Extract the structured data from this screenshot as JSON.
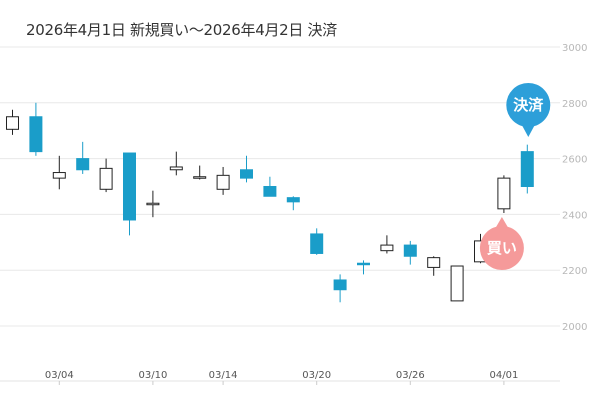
{
  "title": "2026年4月1日 新規買い〜2026年4月2日 決済",
  "colors": {
    "up_fill": "#ffffff",
    "up_stroke": "#222222",
    "down_fill": "#1a9dc9",
    "grid": "#e8e8e8",
    "buy_marker": "#f59a9a",
    "settle_marker": "#2d9fd9"
  },
  "markers": {
    "buy_label": "買い",
    "settle_label": "決済"
  },
  "chart_data": {
    "type": "candlestick",
    "title": "2026年4月1日 新規買い〜2026年4月2日 決済",
    "ylim": [
      1900,
      3050
    ],
    "yticks": [
      2000,
      2200,
      2400,
      2600,
      2800,
      3000
    ],
    "ytick_labels": [
      "2000",
      "2200",
      "2400",
      "2600",
      "2800",
      "3000"
    ],
    "grid": true,
    "xtick_labels": [
      {
        "label": "03/04",
        "index": 2
      },
      {
        "label": "03/10",
        "index": 6
      },
      {
        "label": "03/14",
        "index": 9
      },
      {
        "label": "03/20",
        "index": 13
      },
      {
        "label": "03/26",
        "index": 17
      },
      {
        "label": "04/01",
        "index": 21
      }
    ],
    "candles": [
      {
        "open": 2705,
        "close": 2750,
        "high": 2775,
        "low": 2685
      },
      {
        "open": 2750,
        "close": 2625,
        "high": 2800,
        "low": 2610
      },
      {
        "open": 2530,
        "close": 2550,
        "high": 2610,
        "low": 2490
      },
      {
        "open": 2600,
        "close": 2560,
        "high": 2660,
        "low": 2545
      },
      {
        "open": 2490,
        "close": 2565,
        "high": 2600,
        "low": 2480
      },
      {
        "open": 2620,
        "close": 2380,
        "high": 2620,
        "low": 2325
      },
      {
        "open": 2435,
        "close": 2440,
        "high": 2485,
        "low": 2390
      },
      {
        "open": 2560,
        "close": 2570,
        "high": 2625,
        "low": 2540
      },
      {
        "open": 2530,
        "close": 2535,
        "high": 2575,
        "low": 2525
      },
      {
        "open": 2490,
        "close": 2540,
        "high": 2570,
        "low": 2470
      },
      {
        "open": 2560,
        "close": 2530,
        "high": 2610,
        "low": 2515
      },
      {
        "open": 2500,
        "close": 2465,
        "high": 2535,
        "low": 2465
      },
      {
        "open": 2460,
        "close": 2445,
        "high": 2465,
        "low": 2415
      },
      {
        "open": 2330,
        "close": 2260,
        "high": 2350,
        "low": 2255
      },
      {
        "open": 2165,
        "close": 2130,
        "high": 2185,
        "low": 2085
      },
      {
        "open": 2225,
        "close": 2220,
        "high": 2235,
        "low": 2185
      },
      {
        "open": 2270,
        "close": 2290,
        "high": 2325,
        "low": 2260
      },
      {
        "open": 2290,
        "close": 2250,
        "high": 2305,
        "low": 2220
      },
      {
        "open": 2210,
        "close": 2245,
        "high": 2250,
        "low": 2180
      },
      {
        "open": 2090,
        "close": 2215,
        "high": 2215,
        "low": 2090
      },
      {
        "open": 2230,
        "close": 2305,
        "high": 2330,
        "low": 2225
      },
      {
        "open": 2420,
        "close": 2530,
        "high": 2540,
        "low": 2405
      },
      {
        "open": 2625,
        "close": 2500,
        "high": 2650,
        "low": 2475
      }
    ]
  }
}
